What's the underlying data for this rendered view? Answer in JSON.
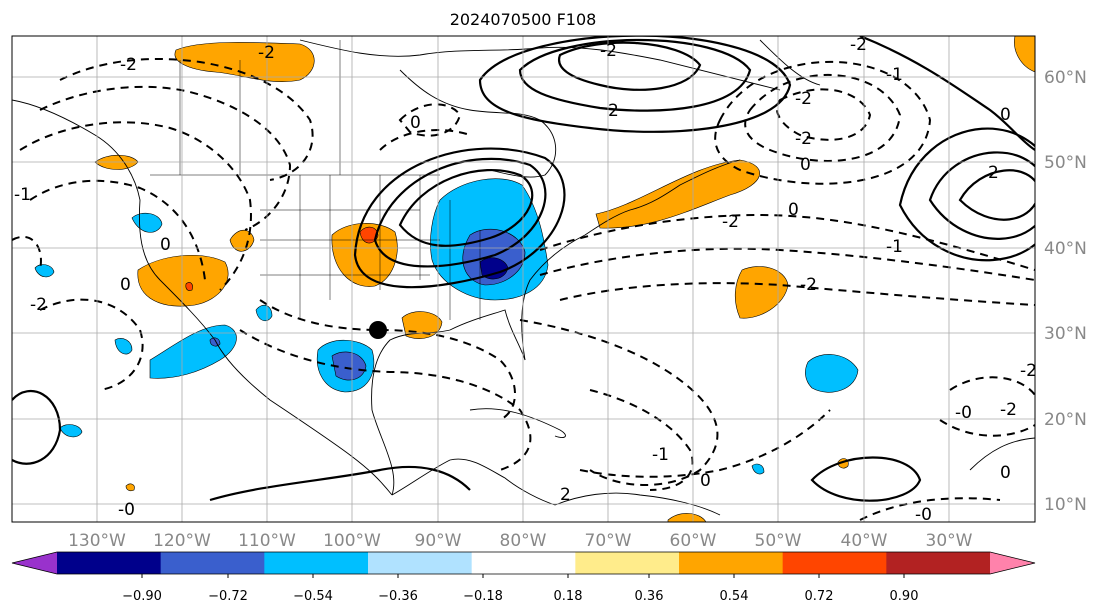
{
  "title": "2024070500 F108",
  "map": {
    "lon_labels": [
      "130°W",
      "120°W",
      "110°W",
      "100°W",
      "90°W",
      "80°W",
      "70°W",
      "60°W",
      "50°W",
      "40°W",
      "30°W"
    ],
    "lat_labels": [
      "60°N",
      "50°N",
      "40°N",
      "30°N",
      "20°N",
      "10°N"
    ],
    "contour_labels": [
      "-2",
      "-2",
      "0",
      "2",
      "-2",
      "0",
      "-2",
      "-2",
      "-2",
      "-1",
      "-2",
      "0",
      "-2",
      "2",
      "0",
      "-1",
      "0",
      "-1",
      "0",
      "-0",
      "-2",
      "2",
      "-1",
      "0",
      "-0",
      "0",
      "-0",
      "-2",
      "-2"
    ]
  },
  "colorbar": {
    "tick_labels": [
      "−0.90",
      "−0.72",
      "−0.54",
      "−0.36",
      "−0.18",
      "0.18",
      "0.36",
      "0.54",
      "0.72",
      "0.90"
    ],
    "colors": [
      "#9932cc",
      "#00008b",
      "#3a5fcd",
      "#00bfff",
      "#b0e2ff",
      "#ffffff",
      "#ffec8b",
      "#ffa500",
      "#ff4500",
      "#b22222",
      "#ff82ab"
    ]
  }
}
